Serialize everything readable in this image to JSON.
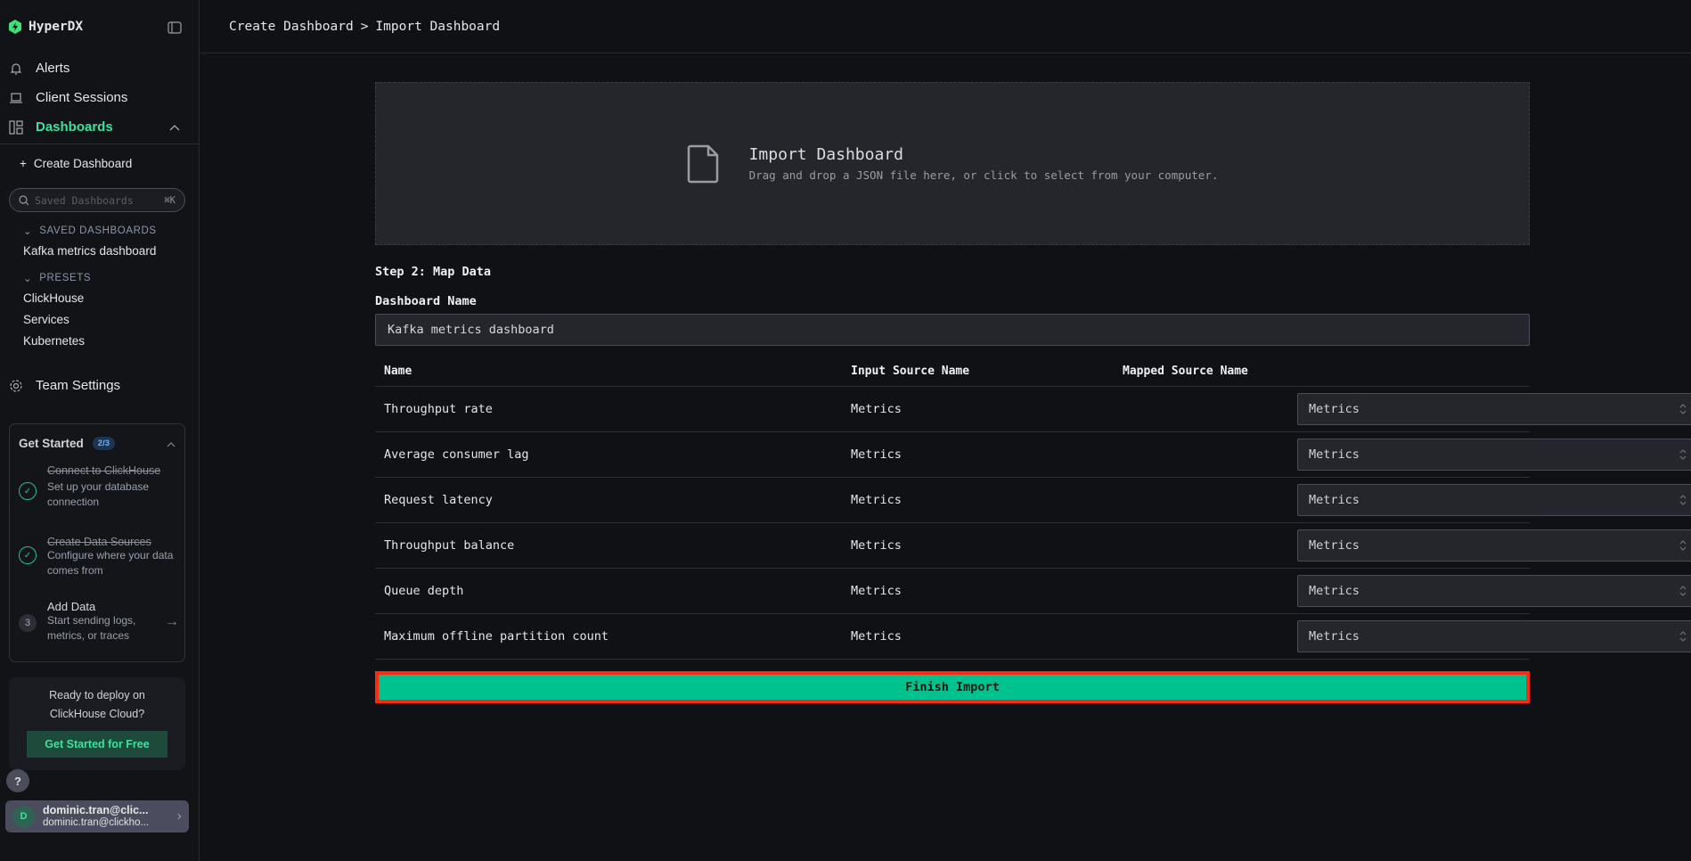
{
  "app": {
    "name": "HyperDX"
  },
  "sidebar": {
    "nav": [
      {
        "label": "Alerts"
      },
      {
        "label": "Client Sessions"
      },
      {
        "label": "Dashboards"
      }
    ],
    "create_dashboard": "Create Dashboard",
    "search": {
      "placeholder": "Saved Dashboards",
      "shortcut": "⌘K"
    },
    "saved_header": "SAVED DASHBOARDS",
    "saved": [
      "Kafka metrics dashboard"
    ],
    "presets_header": "PRESETS",
    "presets": [
      "ClickHouse",
      "Services",
      "Kubernetes"
    ],
    "team_settings": "Team Settings",
    "get_started": {
      "title": "Get Started",
      "badge": "2/3",
      "steps": [
        {
          "title": "Connect to ClickHouse",
          "desc": "Set up your database connection",
          "done": true
        },
        {
          "title": "Create Data Sources",
          "desc": "Configure where your data comes from",
          "done": true
        },
        {
          "number": "3",
          "title": "Add Data",
          "desc": "Start sending logs, metrics, or traces",
          "done": false
        }
      ]
    },
    "deploy": {
      "text": "Ready to deploy on ClickHouse Cloud?",
      "button": "Get Started for Free"
    },
    "help": "?",
    "user": {
      "initial": "D",
      "name": "dominic.tran@clic...",
      "email": "dominic.tran@clickho..."
    }
  },
  "breadcrumb": {
    "parent": "Create Dashboard",
    "separator": ">",
    "current": "Import Dashboard"
  },
  "dropzone": {
    "title": "Import Dashboard",
    "subtitle": "Drag and drop a JSON file here, or click to select from your computer."
  },
  "step2": {
    "title": "Step 2: Map Data",
    "name_label": "Dashboard Name",
    "name_value": "Kafka metrics dashboard"
  },
  "table": {
    "headers": [
      "Name",
      "Input Source Name",
      "Mapped Source Name"
    ],
    "rows": [
      {
        "name": "Throughput rate",
        "input": "Metrics",
        "mapped": "Metrics"
      },
      {
        "name": "Average consumer lag",
        "input": "Metrics",
        "mapped": "Metrics"
      },
      {
        "name": "Request latency",
        "input": "Metrics",
        "mapped": "Metrics"
      },
      {
        "name": "Throughput balance",
        "input": "Metrics",
        "mapped": "Metrics"
      },
      {
        "name": "Queue depth",
        "input": "Metrics",
        "mapped": "Metrics"
      },
      {
        "name": "Maximum offline partition count",
        "input": "Metrics",
        "mapped": "Metrics"
      }
    ]
  },
  "finish_label": "Finish Import",
  "colors": {
    "accent": "#00c28f",
    "highlight": "#ff2a0d",
    "background": "#0f1115"
  }
}
